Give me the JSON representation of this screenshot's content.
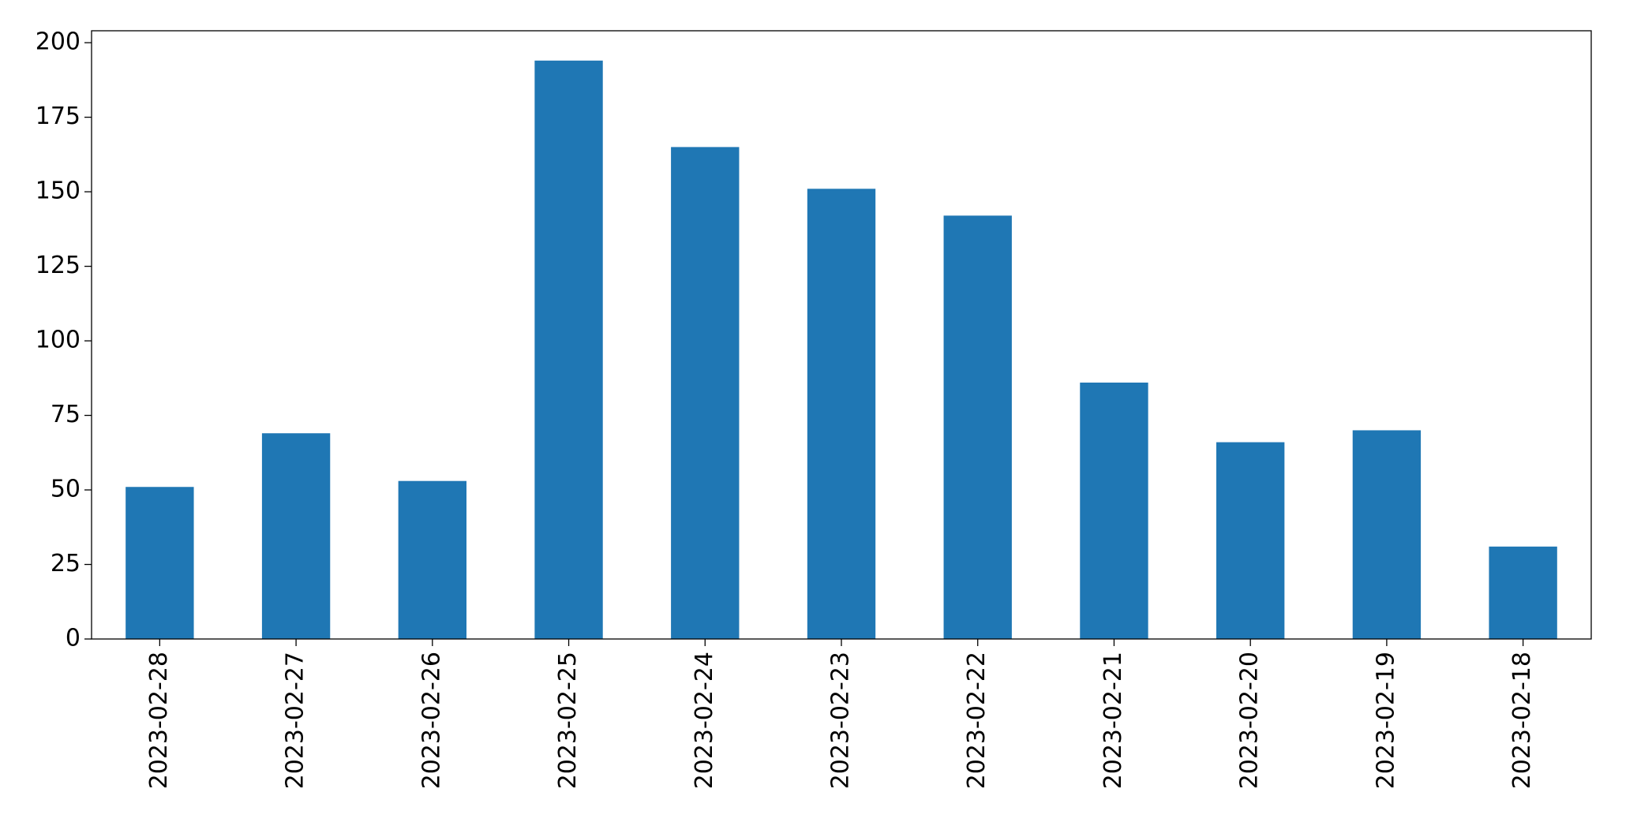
{
  "chart_data": {
    "type": "bar",
    "categories": [
      "2023-02-28",
      "2023-02-27",
      "2023-02-26",
      "2023-02-25",
      "2023-02-24",
      "2023-02-23",
      "2023-02-22",
      "2023-02-21",
      "2023-02-20",
      "2023-02-19",
      "2023-02-18"
    ],
    "values": [
      51,
      69,
      53,
      194,
      165,
      151,
      142,
      86,
      66,
      70,
      31
    ],
    "color": "#1f77b4",
    "ylim": [
      0,
      204
    ],
    "yticks": [
      0,
      25,
      50,
      75,
      100,
      125,
      150,
      175,
      200
    ],
    "grid": false
  }
}
